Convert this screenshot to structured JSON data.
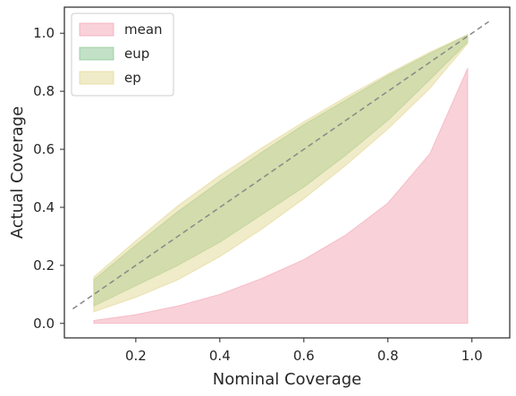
{
  "chart_data": {
    "type": "area",
    "xlabel": "Nominal Coverage",
    "ylabel": "Actual Coverage",
    "xlim": [
      0.03,
      1.09
    ],
    "ylim": [
      -0.05,
      1.09
    ],
    "xticks": [
      0.2,
      0.4,
      0.6,
      0.8,
      1.0
    ],
    "yticks": [
      0.0,
      0.2,
      0.4,
      0.6,
      0.8,
      1.0
    ],
    "grid": false,
    "legend_position": "top-left",
    "diagonal": {
      "x": [
        0.05,
        1.04
      ],
      "y": [
        0.05,
        1.04
      ],
      "color": "#888888",
      "style": "dashed"
    },
    "series": [
      {
        "name": "mean",
        "color": "#f4a3b4",
        "x": [
          0.1,
          0.2,
          0.3,
          0.4,
          0.5,
          0.6,
          0.7,
          0.8,
          0.9,
          0.99
        ],
        "lower": [
          0.0,
          0.0,
          0.0,
          0.0,
          0.0,
          0.0,
          0.0,
          0.0,
          0.0,
          0.0
        ],
        "upper": [
          0.01,
          0.03,
          0.06,
          0.1,
          0.155,
          0.22,
          0.305,
          0.415,
          0.585,
          0.88
        ]
      },
      {
        "name": "eup",
        "color": "#88c48f",
        "x": [
          0.1,
          0.2,
          0.3,
          0.4,
          0.5,
          0.6,
          0.7,
          0.8,
          0.9,
          0.99
        ],
        "lower": [
          0.06,
          0.13,
          0.2,
          0.28,
          0.375,
          0.47,
          0.58,
          0.7,
          0.84,
          0.97
        ],
        "upper": [
          0.15,
          0.27,
          0.385,
          0.49,
          0.59,
          0.685,
          0.77,
          0.855,
          0.93,
          0.995
        ]
      },
      {
        "name": "ep",
        "color": "#e2d792",
        "x": [
          0.1,
          0.2,
          0.3,
          0.4,
          0.5,
          0.6,
          0.7,
          0.8,
          0.9,
          0.99
        ],
        "lower": [
          0.04,
          0.09,
          0.15,
          0.23,
          0.325,
          0.43,
          0.545,
          0.67,
          0.81,
          0.965
        ],
        "upper": [
          0.16,
          0.285,
          0.405,
          0.51,
          0.605,
          0.695,
          0.78,
          0.86,
          0.935,
          0.995
        ]
      }
    ]
  }
}
